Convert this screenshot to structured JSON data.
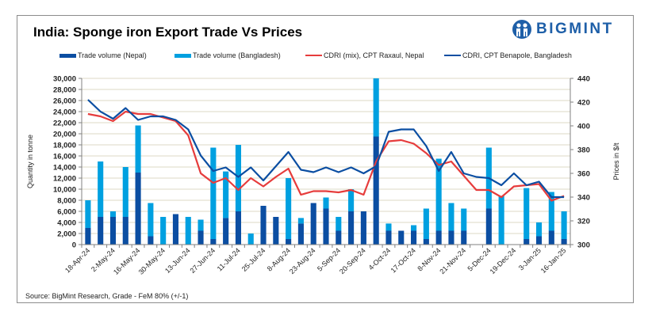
{
  "chart_data": {
    "type": "bar",
    "title": "India: Sponge iron Export Trade Vs Prices",
    "ylabel": "Quantity in tonne",
    "y2label": "Prices in $/t",
    "xlabel": "",
    "ylim": [
      0,
      30000
    ],
    "y2lim": [
      300,
      440
    ],
    "yticks": [
      "0",
      "2,000",
      "4,000",
      "6,000",
      "8,000",
      "10,000",
      "12,000",
      "14,000",
      "16,000",
      "18,000",
      "20,000",
      "22,000",
      "24,000",
      "26,000",
      "28,000",
      "30,000"
    ],
    "y2ticks": [
      "300",
      "320",
      "340",
      "360",
      "380",
      "400",
      "420",
      "440"
    ],
    "xticklabels": [
      "18-Apr-24",
      "2-May-24",
      "16-May-24",
      "30-May-24",
      "13-Jun-24",
      "27-Jun-24",
      "11-Jul-24",
      "25-Jul-24",
      "8-Aug-24",
      "23-Aug-24",
      "5-Sep-24",
      "20-Sep-24",
      "4-Oct-24",
      "17-Oct-24",
      "8-Nov-24",
      "21-Nov-24",
      "5-Dec-24",
      "19-Dec-24",
      "3-Jan-25",
      "16-Jan-25"
    ],
    "grid": true,
    "legend_position": "top",
    "stacked": true,
    "series": [
      {
        "name": "Trade volume (Nepal)",
        "type": "bar",
        "axis": "left",
        "color": "#0b4ea2",
        "values": [
          3000,
          5000,
          5000,
          5000,
          13000,
          1500,
          0,
          5500,
          0,
          2500,
          1000,
          4800,
          6000,
          0,
          7000,
          5000,
          1000,
          3800,
          7500,
          6500,
          2500,
          6000,
          6000,
          19500,
          2500,
          2500,
          2500,
          1000,
          2500,
          2500,
          2500,
          null,
          6500,
          0,
          null,
          1000,
          1500,
          2500,
          1000
        ]
      },
      {
        "name": "Trade volume (Bangladesh)",
        "type": "bar",
        "axis": "left",
        "color": "#00a0e0",
        "values": [
          5000,
          10000,
          1000,
          9000,
          8500,
          6000,
          5000,
          0,
          5000,
          2000,
          16500,
          8400,
          12000,
          2000,
          0,
          0,
          11000,
          1000,
          0,
          2000,
          2500,
          4000,
          0,
          10500,
          1300,
          0,
          1000,
          5500,
          13000,
          5000,
          4000,
          null,
          11000,
          8800,
          null,
          9200,
          2500,
          7000,
          5000
        ]
      },
      {
        "name": "CDRI (mix), CPT Raxaul, Nepal",
        "type": "line",
        "axis": "right",
        "color": "#e63c3c",
        "values": [
          410,
          408,
          404,
          412,
          410,
          410,
          407,
          404,
          392,
          360,
          352,
          356,
          346,
          356,
          349,
          357,
          364,
          342,
          345,
          345,
          344,
          346,
          342,
          370,
          387,
          388,
          385,
          377,
          367,
          370,
          358,
          346,
          346,
          340,
          349,
          350,
          351,
          337,
          341
        ]
      },
      {
        "name": "CDRI, CPT Benapole, Bangladesh",
        "type": "line",
        "axis": "right",
        "color": "#0b4ea2",
        "values": [
          422,
          412,
          406,
          415,
          405,
          408,
          408,
          405,
          397,
          375,
          362,
          365,
          357,
          365,
          354,
          366,
          378,
          363,
          361,
          365,
          361,
          365,
          360,
          366,
          395,
          397,
          397,
          383,
          362,
          378,
          360,
          357,
          356,
          350,
          360,
          350,
          353,
          340,
          340
        ]
      }
    ]
  },
  "legend": {
    "items": [
      {
        "label": "Trade volume (Nepal)",
        "color": "#0b4ea2"
      },
      {
        "label": "Trade volume (Bangladesh)",
        "color": "#00a0e0"
      },
      {
        "label": "CDRI (mix), CPT Raxaul, Nepal",
        "color": "#e63c3c"
      },
      {
        "label": "CDRI, CPT Benapole, Bangladesh",
        "color": "#0b4ea2"
      }
    ]
  },
  "header": {
    "title": "India: Sponge iron Export Trade Vs Prices",
    "logo_text": "BIGMINT"
  },
  "footer": {
    "source": "Source: BigMint Research, Grade - FeM 80% (+/-1)"
  }
}
